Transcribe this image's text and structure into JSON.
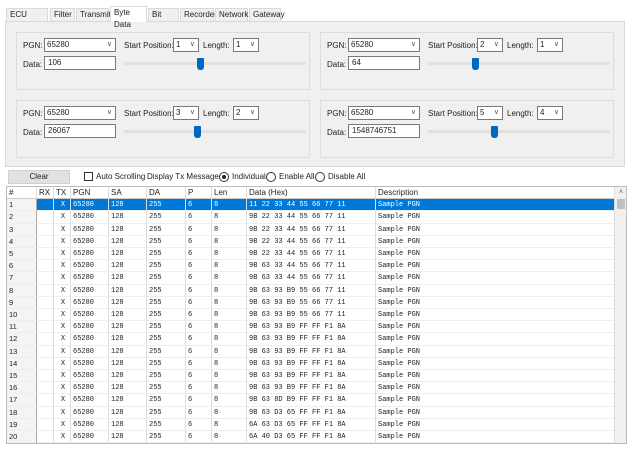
{
  "tabs": [
    {
      "label": "ECU Setup"
    },
    {
      "label": "Filter"
    },
    {
      "label": "Transmit"
    },
    {
      "label": "Byte Data",
      "selected": true
    },
    {
      "label": "Bit Data"
    },
    {
      "label": "Recorder"
    },
    {
      "label": "Network"
    },
    {
      "label": "Gateway"
    }
  ],
  "labels": {
    "pgn": "PGN:",
    "data": "Data:",
    "start": "Start Position:",
    "length": "Length:"
  },
  "panels": [
    {
      "pgn": "65280",
      "start": "1",
      "length": "1",
      "data": "106",
      "slider_fraction": 0.416
    },
    {
      "pgn": "65280",
      "start": "2",
      "length": "1",
      "data": "64",
      "slider_fraction": 0.251
    },
    {
      "pgn": "65280",
      "start": "3",
      "length": "2",
      "data": "26067",
      "slider_fraction": 0.398
    },
    {
      "pgn": "65280",
      "start": "5",
      "length": "4",
      "data": "1548746751",
      "slider_fraction": 0.361
    }
  ],
  "toolbar": {
    "clear": "Clear",
    "auto_scrolling": "Auto Scrolling",
    "auto_scrolling_checked": false,
    "display_tx": "Display Tx Messages:",
    "radios": [
      "Individual",
      "Enable All",
      "Disable All"
    ],
    "radio_selected": "Individual"
  },
  "table": {
    "columns": [
      "#",
      "RX",
      "TX",
      "PGN",
      "SA",
      "DA",
      "P",
      "Len",
      "Data (Hex)",
      "Description"
    ],
    "selected_row": 0,
    "rows": [
      [
        "1",
        "",
        "X",
        "65280",
        "128",
        "255",
        "6",
        "8",
        "11 22 33 44 55 66 77 11",
        "Sample PGN"
      ],
      [
        "2",
        "",
        "X",
        "65280",
        "128",
        "255",
        "6",
        "8",
        "9B 22 33 44 55 66 77 11",
        "Sample PGN"
      ],
      [
        "3",
        "",
        "X",
        "65280",
        "128",
        "255",
        "6",
        "8",
        "9B 22 33 44 55 66 77 11",
        "Sample PGN"
      ],
      [
        "4",
        "",
        "X",
        "65280",
        "128",
        "255",
        "6",
        "8",
        "9B 22 33 44 55 66 77 11",
        "Sample PGN"
      ],
      [
        "5",
        "",
        "X",
        "65280",
        "128",
        "255",
        "6",
        "8",
        "9B 22 33 44 55 66 77 11",
        "Sample PGN"
      ],
      [
        "6",
        "",
        "X",
        "65280",
        "128",
        "255",
        "6",
        "8",
        "9B 63 33 44 55 66 77 11",
        "Sample PGN"
      ],
      [
        "7",
        "",
        "X",
        "65280",
        "128",
        "255",
        "6",
        "8",
        "9B 63 33 44 55 66 77 11",
        "Sample PGN"
      ],
      [
        "8",
        "",
        "X",
        "65280",
        "128",
        "255",
        "6",
        "8",
        "9B 63 93 B9 55 66 77 11",
        "Sample PGN"
      ],
      [
        "9",
        "",
        "X",
        "65280",
        "128",
        "255",
        "6",
        "8",
        "9B 63 93 B9 55 66 77 11",
        "Sample PGN"
      ],
      [
        "10",
        "",
        "X",
        "65280",
        "128",
        "255",
        "6",
        "8",
        "9B 63 93 B9 55 66 77 11",
        "Sample PGN"
      ],
      [
        "11",
        "",
        "X",
        "65280",
        "128",
        "255",
        "6",
        "8",
        "9B 63 93 B9 FF FF F1 8A",
        "Sample PGN"
      ],
      [
        "12",
        "",
        "X",
        "65280",
        "128",
        "255",
        "6",
        "8",
        "9B 63 93 B9 FF FF F1 8A",
        "Sample PGN"
      ],
      [
        "13",
        "",
        "X",
        "65280",
        "128",
        "255",
        "6",
        "8",
        "9B 63 93 B9 FF FF F1 8A",
        "Sample PGN"
      ],
      [
        "14",
        "",
        "X",
        "65280",
        "128",
        "255",
        "6",
        "8",
        "9B 63 93 B9 FF FF F1 8A",
        "Sample PGN"
      ],
      [
        "15",
        "",
        "X",
        "65280",
        "128",
        "255",
        "6",
        "8",
        "9B 63 93 B9 FF FF F1 8A",
        "Sample PGN"
      ],
      [
        "16",
        "",
        "X",
        "65280",
        "128",
        "255",
        "6",
        "8",
        "9B 63 93 B9 FF FF F1 8A",
        "Sample PGN"
      ],
      [
        "17",
        "",
        "X",
        "65280",
        "128",
        "255",
        "6",
        "8",
        "9B 63 8D B9 FF FF F1 8A",
        "Sample PGN"
      ],
      [
        "18",
        "",
        "X",
        "65280",
        "128",
        "255",
        "6",
        "8",
        "9B 63 D3 65 FF FF F1 8A",
        "Sample PGN"
      ],
      [
        "19",
        "",
        "X",
        "65280",
        "128",
        "255",
        "6",
        "8",
        "6A 63 D3 65 FF FF F1 8A",
        "Sample PGN"
      ],
      [
        "20",
        "",
        "X",
        "65280",
        "128",
        "255",
        "6",
        "8",
        "6A 40 D3 65 FF FF F1 8A",
        "Sample PGN"
      ]
    ]
  },
  "colors": {
    "selection": "#0078d7",
    "slider": "#0067c0"
  }
}
